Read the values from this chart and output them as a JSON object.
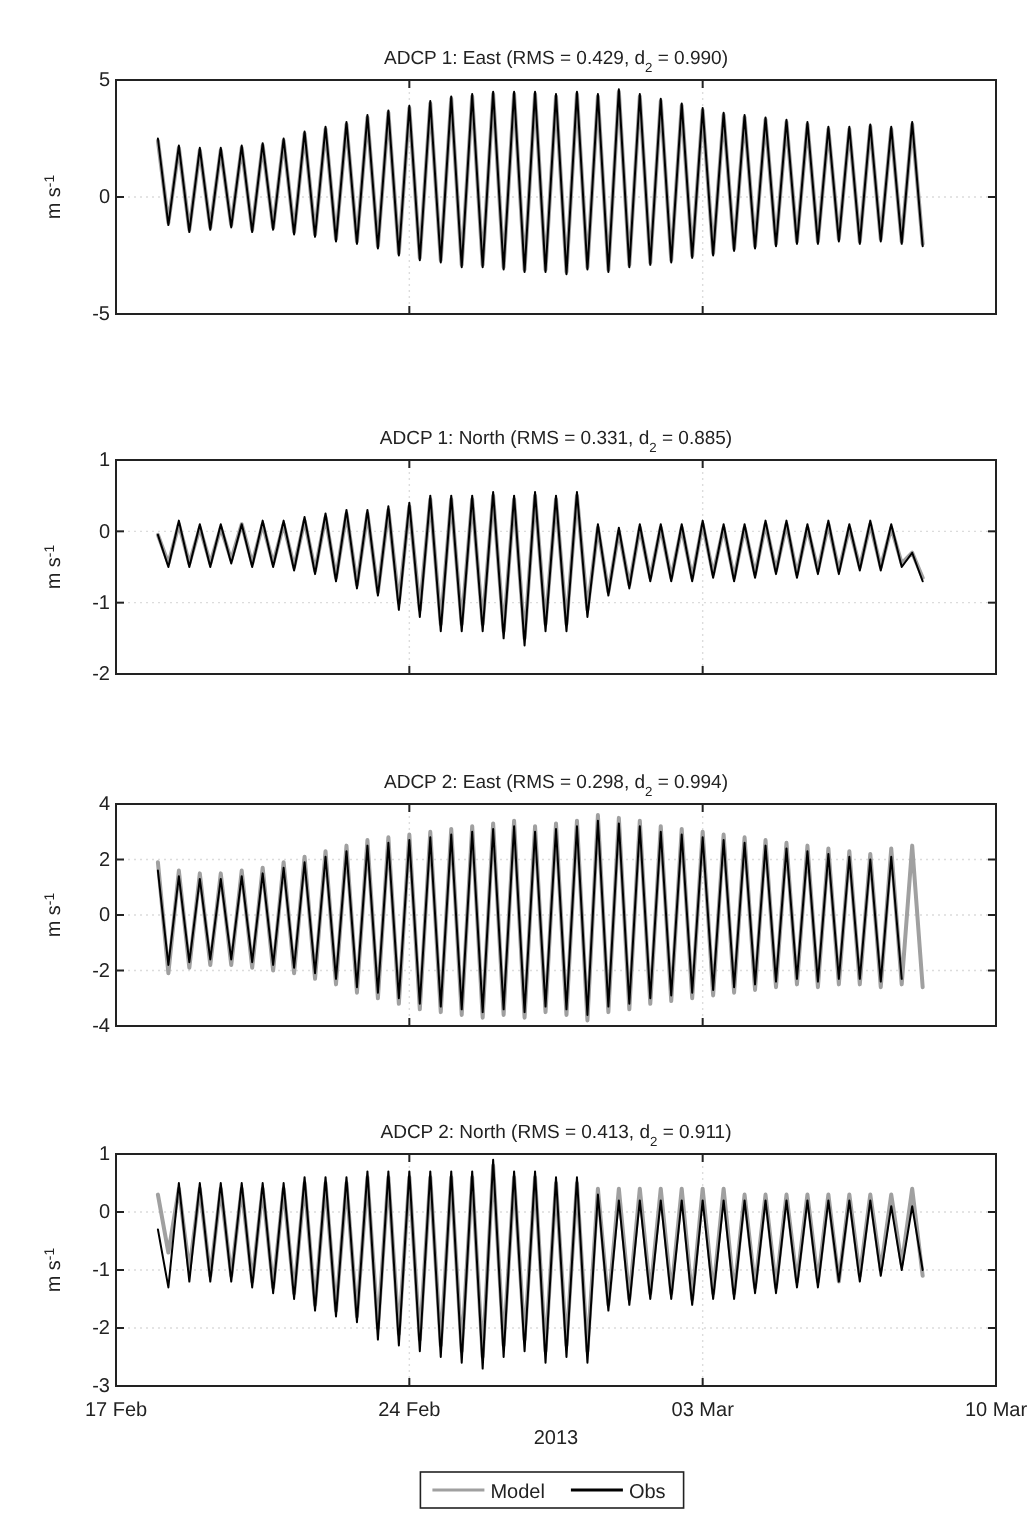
{
  "chart_data": [
    {
      "type": "line",
      "title": "ADCP 1: East (RMS = 0.429, d$_{2}$ = 0.990)",
      "ylabel": "m s$^{-1}$",
      "grid": true,
      "tick_labels": "y",
      "line_style": "solid",
      "xlim": [
        "2013-02-17",
        "2013-03-10"
      ],
      "xticks": [
        {
          "value": "2013-02-17",
          "label": null
        },
        {
          "value": "2013-02-24",
          "label": null
        },
        {
          "value": "2013-03-03",
          "label": null
        },
        {
          "value": "2013-03-10",
          "label": null
        }
      ],
      "ylim": [
        -5,
        5
      ],
      "yticks": [
        -5,
        0,
        5
      ],
      "x": [
        "2013-02-18T00:00",
        "2013-02-18T06:00",
        "2013-02-18T12:00",
        "2013-02-18T18:00",
        "2013-02-19T00:00",
        "2013-02-19T06:00",
        "2013-02-19T12:00",
        "2013-02-19T18:00",
        "2013-02-20T00:00",
        "2013-02-20T06:00",
        "2013-02-20T12:00",
        "2013-02-20T18:00",
        "2013-02-21T00:00",
        "2013-02-21T06:00",
        "2013-02-21T12:00",
        "2013-02-21T18:00",
        "2013-02-22T00:00",
        "2013-02-22T06:00",
        "2013-02-22T12:00",
        "2013-02-22T18:00",
        "2013-02-23T00:00",
        "2013-02-23T06:00",
        "2013-02-23T12:00",
        "2013-02-23T18:00",
        "2013-02-24T00:00",
        "2013-02-24T06:00",
        "2013-02-24T12:00",
        "2013-02-24T18:00",
        "2013-02-25T00:00",
        "2013-02-25T06:00",
        "2013-02-25T12:00",
        "2013-02-25T18:00",
        "2013-02-26T00:00",
        "2013-02-26T06:00",
        "2013-02-26T12:00",
        "2013-02-26T18:00",
        "2013-02-27T00:00",
        "2013-02-27T06:00",
        "2013-02-27T12:00",
        "2013-02-27T18:00",
        "2013-02-28T00:00",
        "2013-02-28T06:00",
        "2013-02-28T12:00",
        "2013-02-28T18:00",
        "2013-03-01T00:00",
        "2013-03-01T06:00",
        "2013-03-01T12:00",
        "2013-03-01T18:00",
        "2013-03-02T00:00",
        "2013-03-02T06:00",
        "2013-03-02T12:00",
        "2013-03-02T18:00",
        "2013-03-03T00:00",
        "2013-03-03T06:00",
        "2013-03-03T12:00",
        "2013-03-03T18:00",
        "2013-03-04T00:00",
        "2013-03-04T06:00",
        "2013-03-04T12:00",
        "2013-03-04T18:00",
        "2013-03-05T00:00",
        "2013-03-05T06:00",
        "2013-03-05T12:00",
        "2013-03-05T18:00",
        "2013-03-06T00:00",
        "2013-03-06T06:00",
        "2013-03-06T12:00",
        "2013-03-06T18:00",
        "2013-03-07T00:00",
        "2013-03-07T06:00",
        "2013-03-07T12:00",
        "2013-03-07T18:00",
        "2013-03-08T00:00",
        "2013-03-08T06:00"
      ],
      "series": [
        {
          "color": "#a0a0a0",
          "values": [
            2.4,
            -1.1,
            2.1,
            -1.4,
            2.0,
            -1.3,
            2.0,
            -1.2,
            2.1,
            -1.4,
            2.2,
            -1.3,
            2.4,
            -1.5,
            2.7,
            -1.6,
            2.9,
            -1.8,
            3.1,
            -1.9,
            3.4,
            -2.1,
            3.6,
            -2.4,
            3.8,
            -2.6,
            4.0,
            -2.7,
            4.2,
            -2.9,
            4.3,
            -2.9,
            4.4,
            -3.0,
            4.4,
            -3.1,
            4.4,
            -3.1,
            4.3,
            -3.2,
            4.4,
            -3.0,
            4.3,
            -3.1,
            4.5,
            -2.9,
            4.3,
            -2.8,
            4.1,
            -2.7,
            3.9,
            -2.5,
            3.7,
            -2.4,
            3.5,
            -2.2,
            3.4,
            -2.1,
            3.3,
            -2.0,
            3.2,
            -1.9,
            3.1,
            -1.9,
            2.9,
            -1.8,
            2.9,
            -1.9,
            3.0,
            -1.8,
            2.9,
            -1.9,
            3.1,
            -2.0
          ]
        },
        {
          "color": "#000000",
          "values": [
            2.5,
            -1.2,
            2.2,
            -1.5,
            2.1,
            -1.4,
            2.1,
            -1.3,
            2.2,
            -1.5,
            2.3,
            -1.4,
            2.5,
            -1.6,
            2.8,
            -1.7,
            3.0,
            -1.9,
            3.2,
            -2.0,
            3.5,
            -2.2,
            3.7,
            -2.5,
            3.9,
            -2.7,
            4.1,
            -2.8,
            4.3,
            -3.0,
            4.4,
            -3.0,
            4.5,
            -3.1,
            4.5,
            -3.2,
            4.5,
            -3.2,
            4.4,
            -3.3,
            4.5,
            -3.1,
            4.4,
            -3.2,
            4.6,
            -3.0,
            4.4,
            -2.9,
            4.2,
            -2.8,
            4.0,
            -2.6,
            3.8,
            -2.5,
            3.6,
            -2.3,
            3.5,
            -2.2,
            3.4,
            -2.1,
            3.3,
            -2.0,
            3.2,
            -2.0,
            3.0,
            -1.9,
            3.0,
            -2.0,
            3.1,
            -1.9,
            3.0,
            -2.0,
            3.2,
            -2.1
          ]
        }
      ]
    },
    {
      "type": "line",
      "title": "ADCP 1: North (RMS = 0.331, d$_{2}$ = 0.885)",
      "ylabel": "m s$^{-1}$",
      "grid": true,
      "tick_labels": "y",
      "line_style": "solid",
      "xlim": [
        "2013-02-17",
        "2013-03-10"
      ],
      "xticks": [
        {
          "value": "2013-02-17",
          "label": null
        },
        {
          "value": "2013-02-24",
          "label": null
        },
        {
          "value": "2013-03-03",
          "label": null
        },
        {
          "value": "2013-03-10",
          "label": null
        }
      ],
      "ylim": [
        -2,
        1
      ],
      "yticks": [
        -2,
        -1,
        0,
        1
      ],
      "x": [
        "2013-02-18T00:00",
        "2013-02-18T06:00",
        "2013-02-18T12:00",
        "2013-02-18T18:00",
        "2013-02-19T00:00",
        "2013-02-19T06:00",
        "2013-02-19T12:00",
        "2013-02-19T18:00",
        "2013-02-20T00:00",
        "2013-02-20T06:00",
        "2013-02-20T12:00",
        "2013-02-20T18:00",
        "2013-02-21T00:00",
        "2013-02-21T06:00",
        "2013-02-21T12:00",
        "2013-02-21T18:00",
        "2013-02-22T00:00",
        "2013-02-22T06:00",
        "2013-02-22T12:00",
        "2013-02-22T18:00",
        "2013-02-23T00:00",
        "2013-02-23T06:00",
        "2013-02-23T12:00",
        "2013-02-23T18:00",
        "2013-02-24T00:00",
        "2013-02-24T06:00",
        "2013-02-24T12:00",
        "2013-02-24T18:00",
        "2013-02-25T00:00",
        "2013-02-25T06:00",
        "2013-02-25T12:00",
        "2013-02-25T18:00",
        "2013-02-26T00:00",
        "2013-02-26T06:00",
        "2013-02-26T12:00",
        "2013-02-26T18:00",
        "2013-02-27T00:00",
        "2013-02-27T06:00",
        "2013-02-27T12:00",
        "2013-02-27T18:00",
        "2013-02-28T00:00",
        "2013-02-28T06:00",
        "2013-02-28T12:00",
        "2013-02-28T18:00",
        "2013-03-01T00:00",
        "2013-03-01T06:00",
        "2013-03-01T12:00",
        "2013-03-01T18:00",
        "2013-03-02T00:00",
        "2013-03-02T06:00",
        "2013-03-02T12:00",
        "2013-03-02T18:00",
        "2013-03-03T00:00",
        "2013-03-03T06:00",
        "2013-03-03T12:00",
        "2013-03-03T18:00",
        "2013-03-04T00:00",
        "2013-03-04T06:00",
        "2013-03-04T12:00",
        "2013-03-04T18:00",
        "2013-03-05T00:00",
        "2013-03-05T06:00",
        "2013-03-05T12:00",
        "2013-03-05T18:00",
        "2013-03-06T00:00",
        "2013-03-06T06:00",
        "2013-03-06T12:00",
        "2013-03-06T18:00",
        "2013-03-07T00:00",
        "2013-03-07T06:00",
        "2013-03-07T12:00",
        "2013-03-07T18:00",
        "2013-03-08T00:00",
        "2013-03-08T06:00"
      ],
      "series": [
        {
          "color": "#a0a0a0",
          "values": [
            -0.05,
            -0.45,
            0.1,
            -0.45,
            0.05,
            -0.45,
            0.05,
            -0.4,
            0.1,
            -0.45,
            0.1,
            -0.45,
            0.1,
            -0.5,
            0.15,
            -0.55,
            0.2,
            -0.65,
            0.25,
            -0.75,
            0.25,
            -0.85,
            0.3,
            -1.0,
            0.35,
            -1.1,
            0.45,
            -1.3,
            0.45,
            -1.3,
            0.45,
            -1.3,
            0.5,
            -1.4,
            0.45,
            -1.5,
            0.5,
            -1.3,
            0.45,
            -1.3,
            0.5,
            -1.1,
            0.05,
            -0.85,
            0.0,
            -0.75,
            0.05,
            -0.65,
            0.05,
            -0.65,
            0.05,
            -0.65,
            0.1,
            -0.6,
            0.05,
            -0.65,
            0.05,
            -0.6,
            0.1,
            -0.55,
            0.1,
            -0.6,
            0.05,
            -0.55,
            0.1,
            -0.55,
            0.05,
            -0.5,
            0.1,
            -0.5,
            0.05,
            -0.45,
            -0.3,
            -0.65
          ]
        },
        {
          "color": "#000000",
          "values": [
            -0.05,
            -0.5,
            0.15,
            -0.5,
            0.1,
            -0.5,
            0.1,
            -0.45,
            0.1,
            -0.5,
            0.15,
            -0.5,
            0.15,
            -0.55,
            0.2,
            -0.6,
            0.25,
            -0.7,
            0.3,
            -0.8,
            0.3,
            -0.9,
            0.35,
            -1.1,
            0.4,
            -1.2,
            0.5,
            -1.4,
            0.5,
            -1.4,
            0.5,
            -1.4,
            0.55,
            -1.5,
            0.5,
            -1.6,
            0.55,
            -1.4,
            0.5,
            -1.4,
            0.55,
            -1.2,
            0.1,
            -0.9,
            0.05,
            -0.8,
            0.1,
            -0.7,
            0.1,
            -0.7,
            0.1,
            -0.7,
            0.15,
            -0.65,
            0.1,
            -0.7,
            0.1,
            -0.65,
            0.15,
            -0.6,
            0.15,
            -0.65,
            0.1,
            -0.6,
            0.15,
            -0.6,
            0.1,
            -0.55,
            0.15,
            -0.55,
            0.1,
            -0.5,
            -0.3,
            -0.7
          ]
        }
      ]
    },
    {
      "type": "line",
      "title": "ADCP 2: East (RMS = 0.298, d$_{2}$ = 0.994)",
      "ylabel": "m s$^{-1}$",
      "grid": true,
      "tick_labels": "y",
      "line_style": "solid",
      "xlim": [
        "2013-02-17",
        "2013-03-10"
      ],
      "xticks": [
        {
          "value": "2013-02-17",
          "label": null
        },
        {
          "value": "2013-02-24",
          "label": null
        },
        {
          "value": "2013-03-03",
          "label": null
        },
        {
          "value": "2013-03-10",
          "label": null
        }
      ],
      "ylim": [
        -4,
        4
      ],
      "yticks": [
        -4,
        -2,
        0,
        2,
        4
      ],
      "x": [
        "2013-02-18T00:00",
        "2013-02-18T06:00",
        "2013-02-18T12:00",
        "2013-02-18T18:00",
        "2013-02-19T00:00",
        "2013-02-19T06:00",
        "2013-02-19T12:00",
        "2013-02-19T18:00",
        "2013-02-20T00:00",
        "2013-02-20T06:00",
        "2013-02-20T12:00",
        "2013-02-20T18:00",
        "2013-02-21T00:00",
        "2013-02-21T06:00",
        "2013-02-21T12:00",
        "2013-02-21T18:00",
        "2013-02-22T00:00",
        "2013-02-22T06:00",
        "2013-02-22T12:00",
        "2013-02-22T18:00",
        "2013-02-23T00:00",
        "2013-02-23T06:00",
        "2013-02-23T12:00",
        "2013-02-23T18:00",
        "2013-02-24T00:00",
        "2013-02-24T06:00",
        "2013-02-24T12:00",
        "2013-02-24T18:00",
        "2013-02-25T00:00",
        "2013-02-25T06:00",
        "2013-02-25T12:00",
        "2013-02-25T18:00",
        "2013-02-26T00:00",
        "2013-02-26T06:00",
        "2013-02-26T12:00",
        "2013-02-26T18:00",
        "2013-02-27T00:00",
        "2013-02-27T06:00",
        "2013-02-27T12:00",
        "2013-02-27T18:00",
        "2013-02-28T00:00",
        "2013-02-28T06:00",
        "2013-02-28T12:00",
        "2013-02-28T18:00",
        "2013-03-01T00:00",
        "2013-03-01T06:00",
        "2013-03-01T12:00",
        "2013-03-01T18:00",
        "2013-03-02T00:00",
        "2013-03-02T06:00",
        "2013-03-02T12:00",
        "2013-03-02T18:00",
        "2013-03-03T00:00",
        "2013-03-03T06:00",
        "2013-03-03T12:00",
        "2013-03-03T18:00",
        "2013-03-04T00:00",
        "2013-03-04T06:00",
        "2013-03-04T12:00",
        "2013-03-04T18:00",
        "2013-03-05T00:00",
        "2013-03-05T06:00",
        "2013-03-05T12:00",
        "2013-03-05T18:00",
        "2013-03-06T00:00",
        "2013-03-06T06:00",
        "2013-03-06T12:00",
        "2013-03-06T18:00",
        "2013-03-07T00:00",
        "2013-03-07T06:00",
        "2013-03-07T12:00",
        "2013-03-07T18:00",
        "2013-03-08T00:00",
        "2013-03-08T06:00"
      ],
      "series": [
        {
          "color": "#a0a0a0",
          "values": [
            1.9,
            -2.1,
            1.6,
            -1.9,
            1.5,
            -1.8,
            1.5,
            -1.8,
            1.6,
            -1.9,
            1.7,
            -2.0,
            1.9,
            -2.1,
            2.1,
            -2.3,
            2.3,
            -2.5,
            2.5,
            -2.8,
            2.7,
            -3.0,
            2.8,
            -3.2,
            2.9,
            -3.4,
            3.0,
            -3.5,
            3.1,
            -3.6,
            3.2,
            -3.7,
            3.3,
            -3.6,
            3.4,
            -3.7,
            3.2,
            -3.5,
            3.3,
            -3.6,
            3.4,
            -3.8,
            3.6,
            -3.5,
            3.5,
            -3.4,
            3.4,
            -3.2,
            3.2,
            -3.1,
            3.1,
            -3.0,
            3.0,
            -2.9,
            2.9,
            -2.8,
            2.8,
            -2.7,
            2.7,
            -2.6,
            2.6,
            -2.5,
            2.5,
            -2.6,
            2.4,
            -2.5,
            2.3,
            -2.5,
            2.2,
            -2.6,
            2.4,
            -2.5,
            2.5,
            -2.6
          ]
        },
        {
          "color": "#000000",
          "values": [
            1.6,
            -1.8,
            1.4,
            -1.7,
            1.3,
            -1.6,
            1.3,
            -1.6,
            1.4,
            -1.7,
            1.5,
            -1.8,
            1.7,
            -1.9,
            1.9,
            -2.1,
            2.1,
            -2.3,
            2.3,
            -2.6,
            2.5,
            -2.8,
            2.6,
            -3.0,
            2.7,
            -3.2,
            2.8,
            -3.3,
            2.9,
            -3.4,
            3.0,
            -3.5,
            3.1,
            -3.4,
            3.2,
            -3.5,
            3.0,
            -3.3,
            3.1,
            -3.4,
            3.2,
            -3.6,
            3.4,
            -3.3,
            3.3,
            -3.2,
            3.2,
            -3.0,
            3.0,
            -2.9,
            2.9,
            -2.8,
            2.8,
            -2.7,
            2.7,
            -2.6,
            2.6,
            -2.5,
            2.5,
            -2.4,
            2.4,
            -2.3,
            2.3,
            -2.4,
            2.2,
            -2.3,
            2.1,
            -2.3,
            2.0,
            -2.4,
            2.1,
            -2.3,
            null,
            null
          ]
        }
      ]
    },
    {
      "type": "line",
      "title": "ADCP 2: North (RMS = 0.413, d$_{2}$ = 0.911)",
      "ylabel": "m s$^{-1}$",
      "xlabel": "2013",
      "grid": true,
      "legend": "bottom",
      "line_style": "solid",
      "xlim": [
        "2013-02-17",
        "2013-03-10"
      ],
      "xticks": [
        {
          "value": "2013-02-17",
          "label": "17 Feb"
        },
        {
          "value": "2013-02-24",
          "label": "24 Feb"
        },
        {
          "value": "2013-03-03",
          "label": "03 Mar"
        },
        {
          "value": "2013-03-10",
          "label": "10 Mar"
        }
      ],
      "ylim": [
        -3,
        1
      ],
      "yticks": [
        -3,
        -2,
        -1,
        0,
        1
      ],
      "x": [
        "2013-02-18T00:00",
        "2013-02-18T06:00",
        "2013-02-18T12:00",
        "2013-02-18T18:00",
        "2013-02-19T00:00",
        "2013-02-19T06:00",
        "2013-02-19T12:00",
        "2013-02-19T18:00",
        "2013-02-20T00:00",
        "2013-02-20T06:00",
        "2013-02-20T12:00",
        "2013-02-20T18:00",
        "2013-02-21T00:00",
        "2013-02-21T06:00",
        "2013-02-21T12:00",
        "2013-02-21T18:00",
        "2013-02-22T00:00",
        "2013-02-22T06:00",
        "2013-02-22T12:00",
        "2013-02-22T18:00",
        "2013-02-23T00:00",
        "2013-02-23T06:00",
        "2013-02-23T12:00",
        "2013-02-23T18:00",
        "2013-02-24T00:00",
        "2013-02-24T06:00",
        "2013-02-24T12:00",
        "2013-02-24T18:00",
        "2013-02-25T00:00",
        "2013-02-25T06:00",
        "2013-02-25T12:00",
        "2013-02-25T18:00",
        "2013-02-26T00:00",
        "2013-02-26T06:00",
        "2013-02-26T12:00",
        "2013-02-26T18:00",
        "2013-02-27T00:00",
        "2013-02-27T06:00",
        "2013-02-27T12:00",
        "2013-02-27T18:00",
        "2013-02-28T00:00",
        "2013-02-28T06:00",
        "2013-02-28T12:00",
        "2013-02-28T18:00",
        "2013-03-01T00:00",
        "2013-03-01T06:00",
        "2013-03-01T12:00",
        "2013-03-01T18:00",
        "2013-03-02T00:00",
        "2013-03-02T06:00",
        "2013-03-02T12:00",
        "2013-03-02T18:00",
        "2013-03-03T00:00",
        "2013-03-03T06:00",
        "2013-03-03T12:00",
        "2013-03-03T18:00",
        "2013-03-04T00:00",
        "2013-03-04T06:00",
        "2013-03-04T12:00",
        "2013-03-04T18:00",
        "2013-03-05T00:00",
        "2013-03-05T06:00",
        "2013-03-05T12:00",
        "2013-03-05T18:00",
        "2013-03-06T00:00",
        "2013-03-06T06:00",
        "2013-03-06T12:00",
        "2013-03-06T18:00",
        "2013-03-07T00:00",
        "2013-03-07T06:00",
        "2013-03-07T12:00",
        "2013-03-07T18:00",
        "2013-03-08T00:00",
        "2013-03-08T06:00"
      ],
      "series": [
        {
          "name": "Model",
          "color": "#a0a0a0",
          "values": [
            0.3,
            -0.7,
            0.4,
            -1.0,
            0.4,
            -1.1,
            0.4,
            -1.1,
            0.4,
            -1.2,
            0.4,
            -1.3,
            0.4,
            -1.4,
            0.5,
            -1.6,
            0.5,
            -1.7,
            0.5,
            -1.8,
            0.6,
            -2.0,
            0.6,
            -2.1,
            0.6,
            -2.2,
            0.6,
            -2.3,
            0.6,
            -2.4,
            0.6,
            -2.5,
            0.8,
            -2.3,
            0.6,
            -2.2,
            0.6,
            -2.4,
            0.5,
            -2.3,
            0.5,
            -2.4,
            0.4,
            -1.6,
            0.4,
            -1.5,
            0.4,
            -1.4,
            0.4,
            -1.4,
            0.4,
            -1.5,
            0.4,
            -1.4,
            0.4,
            -1.4,
            0.3,
            -1.3,
            0.3,
            -1.3,
            0.3,
            -1.2,
            0.3,
            -1.2,
            0.3,
            -1.2,
            0.3,
            -1.1,
            0.3,
            -1.0,
            0.3,
            -0.9,
            0.4,
            -1.1
          ]
        },
        {
          "name": "Obs",
          "color": "#000000",
          "values": [
            -0.3,
            -1.3,
            0.5,
            -1.2,
            0.5,
            -1.2,
            0.5,
            -1.2,
            0.5,
            -1.3,
            0.5,
            -1.4,
            0.5,
            -1.5,
            0.6,
            -1.7,
            0.6,
            -1.8,
            0.6,
            -1.9,
            0.7,
            -2.2,
            0.7,
            -2.3,
            0.7,
            -2.4,
            0.7,
            -2.5,
            0.7,
            -2.6,
            0.7,
            -2.7,
            0.9,
            -2.5,
            0.7,
            -2.4,
            0.7,
            -2.6,
            0.6,
            -2.5,
            0.6,
            -2.6,
            0.3,
            -1.7,
            0.2,
            -1.6,
            0.2,
            -1.5,
            0.2,
            -1.5,
            0.2,
            -1.6,
            0.2,
            -1.5,
            0.2,
            -1.5,
            0.2,
            -1.4,
            0.2,
            -1.4,
            0.2,
            -1.3,
            0.2,
            -1.3,
            0.2,
            -1.2,
            0.2,
            -1.2,
            0.2,
            -1.1,
            0.1,
            -1.0,
            0.1,
            -1.0
          ]
        }
      ]
    }
  ]
}
